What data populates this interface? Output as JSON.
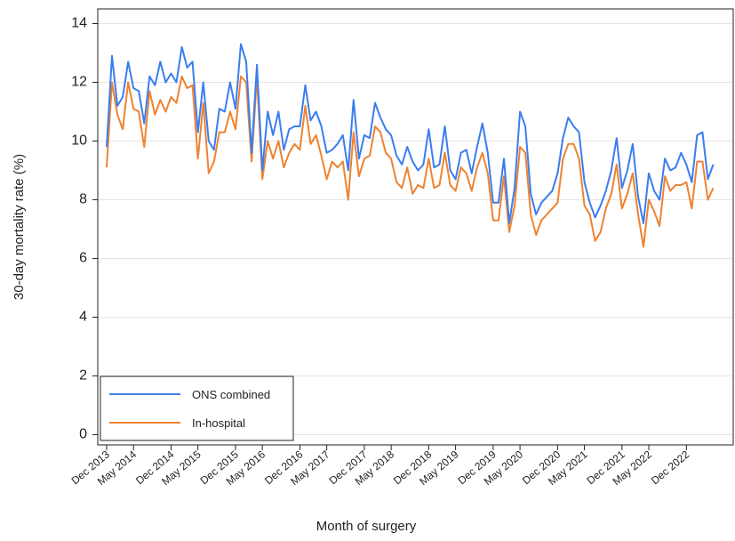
{
  "chart_data": {
    "type": "line",
    "x_label": "Month of surgery",
    "y_label": "30-day mortality rate (%)",
    "categories": [
      "Dec 2013",
      null,
      null,
      null,
      null,
      "May 2014",
      null,
      null,
      null,
      null,
      null,
      null,
      "Dec 2014",
      null,
      null,
      null,
      null,
      "May 2015",
      null,
      null,
      null,
      null,
      null,
      null,
      "Dec 2015",
      null,
      null,
      null,
      null,
      "May 2016",
      null,
      null,
      null,
      null,
      null,
      null,
      "Dec 2016",
      null,
      null,
      null,
      null,
      "May 2017",
      null,
      null,
      null,
      null,
      null,
      null,
      "Dec 2017",
      null,
      null,
      null,
      null,
      "May 2018",
      null,
      null,
      null,
      null,
      null,
      null,
      "Dec 2018",
      null,
      null,
      null,
      null,
      "May 2019",
      null,
      null,
      null,
      null,
      null,
      null,
      "Dec 2019",
      null,
      null,
      null,
      null,
      "May 2020",
      null,
      null,
      null,
      null,
      null,
      null,
      "Dec 2020",
      null,
      null,
      null,
      null,
      "May 2021",
      null,
      null,
      null,
      null,
      null,
      null,
      "Dec 2021",
      null,
      null,
      null,
      null,
      "May 2022",
      null,
      null,
      null,
      null,
      null,
      null,
      "Dec 2022",
      null,
      null,
      null,
      null,
      null
    ],
    "series": [
      {
        "name": "ONS combined",
        "color": "#3a7df0",
        "values": [
          9.8,
          12.9,
          11.2,
          11.5,
          12.7,
          11.8,
          11.7,
          10.6,
          12.2,
          11.9,
          12.7,
          12.0,
          12.3,
          12.0,
          13.2,
          12.5,
          12.7,
          10.3,
          12.0,
          10.0,
          9.7,
          11.1,
          11.0,
          12.0,
          11.1,
          13.3,
          12.7,
          9.6,
          12.6,
          9.0,
          11.0,
          10.2,
          11.0,
          9.7,
          10.4,
          10.5,
          10.5,
          11.9,
          10.7,
          11.0,
          10.5,
          9.6,
          9.7,
          9.9,
          10.2,
          9.0,
          11.4,
          9.4,
          10.2,
          10.1,
          11.3,
          10.8,
          10.4,
          10.2,
          9.5,
          9.2,
          9.8,
          9.3,
          9.0,
          9.2,
          10.4,
          9.1,
          9.2,
          10.5,
          9.0,
          8.7,
          9.6,
          9.7,
          8.9,
          9.8,
          10.6,
          9.6,
          7.9,
          7.9,
          9.4,
          7.2,
          8.4,
          11.0,
          10.5,
          8.2,
          7.5,
          7.9,
          8.1,
          8.3,
          8.9,
          10.1,
          10.8,
          10.5,
          10.3,
          8.6,
          7.9,
          7.4,
          7.8,
          8.3,
          9.0,
          10.1,
          8.4,
          9.0,
          9.9,
          8.1,
          7.2,
          8.9,
          8.3,
          8.0,
          9.4,
          9.0,
          9.1,
          9.6,
          9.2,
          8.6,
          10.2,
          10.3,
          8.7,
          9.2
        ]
      },
      {
        "name": "In-hospital",
        "color": "#ef8230",
        "values": [
          9.1,
          12.0,
          10.9,
          10.4,
          12.0,
          11.1,
          11.0,
          9.8,
          11.7,
          10.9,
          11.4,
          11.0,
          11.5,
          11.3,
          12.2,
          11.8,
          11.9,
          9.4,
          11.3,
          8.9,
          9.3,
          10.3,
          10.3,
          11.0,
          10.4,
          12.2,
          12.0,
          9.3,
          12.2,
          8.7,
          10.0,
          9.4,
          10.0,
          9.1,
          9.6,
          9.9,
          9.7,
          11.2,
          9.9,
          10.2,
          9.5,
          8.7,
          9.3,
          9.1,
          9.3,
          8.0,
          10.3,
          8.8,
          9.4,
          9.5,
          10.5,
          10.3,
          9.6,
          9.4,
          8.6,
          8.4,
          9.1,
          8.2,
          8.5,
          8.4,
          9.4,
          8.4,
          8.5,
          9.6,
          8.5,
          8.3,
          9.1,
          8.9,
          8.3,
          9.1,
          9.6,
          8.9,
          7.3,
          7.3,
          8.8,
          6.9,
          7.8,
          9.8,
          9.6,
          7.5,
          6.8,
          7.3,
          7.5,
          7.7,
          7.9,
          9.4,
          9.9,
          9.9,
          9.4,
          7.8,
          7.5,
          6.6,
          6.9,
          7.7,
          8.2,
          9.2,
          7.7,
          8.2,
          8.9,
          7.5,
          6.4,
          8.0,
          7.6,
          7.1,
          8.8,
          8.3,
          8.5,
          8.5,
          8.6,
          7.7,
          9.3,
          9.3,
          8.0,
          8.4
        ]
      }
    ],
    "ylim": [
      -0.35,
      14.5
    ],
    "yticks": [
      0,
      2,
      4,
      6,
      8,
      10,
      12,
      14
    ],
    "grid": true,
    "legend": "lower left"
  }
}
